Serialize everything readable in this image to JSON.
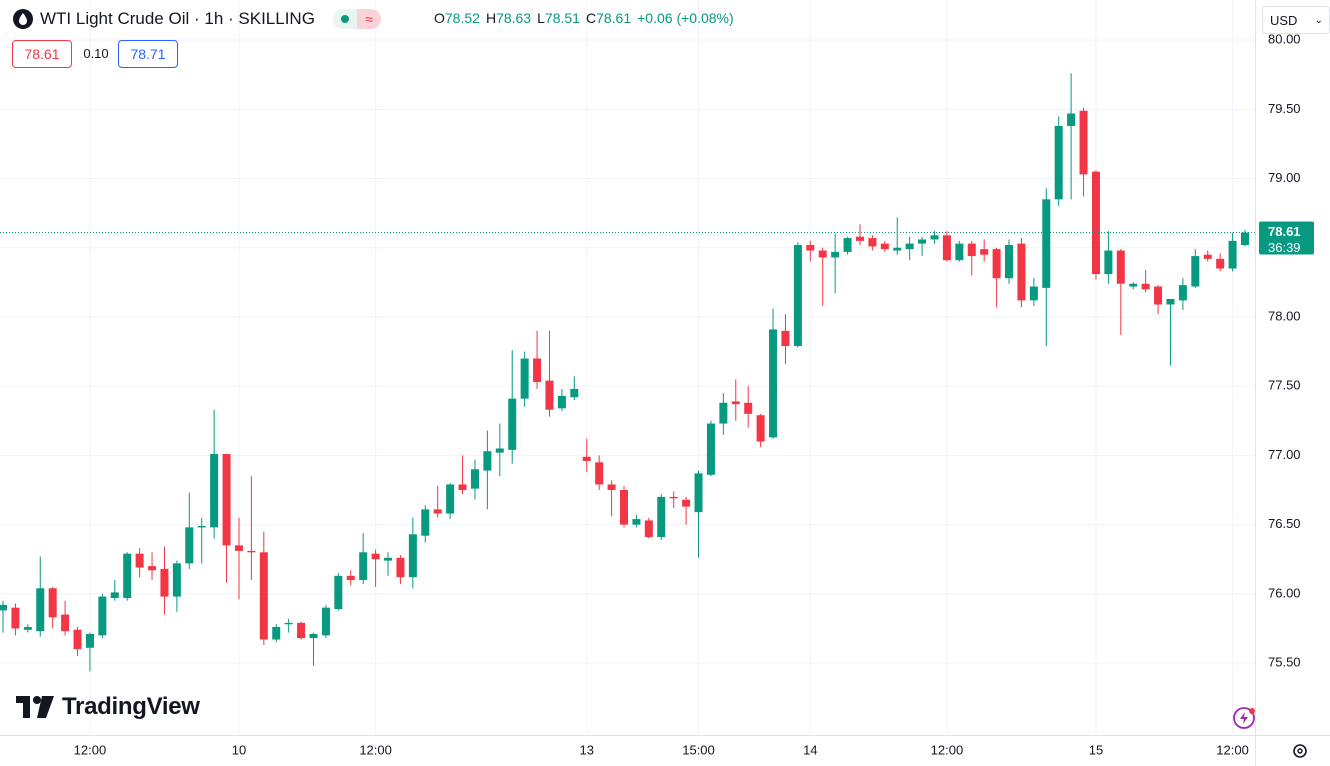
{
  "chart_data": {
    "type": "candlestick",
    "title": "WTI Light Crude Oil · 1h · SKILLING",
    "ohlc_legend": {
      "labels": [
        "O",
        "H",
        "L",
        "C"
      ],
      "values": [
        78.52,
        78.63,
        78.51,
        78.61
      ],
      "change": "+0.06 (+0.08%)"
    },
    "up_color": "#089981",
    "down_color": "#f23645",
    "categories": [
      null,
      null,
      null,
      null,
      null,
      null,
      null,
      "12:00",
      null,
      null,
      null,
      null,
      null,
      null,
      null,
      null,
      null,
      null,
      null,
      "10",
      null,
      null,
      null,
      null,
      null,
      null,
      null,
      null,
      null,
      null,
      "12:00",
      null,
      null,
      null,
      null,
      null,
      null,
      null,
      null,
      null,
      null,
      null,
      null,
      null,
      null,
      null,
      null,
      "13",
      null,
      null,
      null,
      null,
      null,
      null,
      null,
      null,
      "15:00",
      null,
      null,
      null,
      null,
      null,
      null,
      null,
      null,
      "14",
      null,
      null,
      null,
      null,
      null,
      null,
      null,
      null,
      null,
      null,
      "12:00",
      null,
      null,
      null,
      null,
      null,
      null,
      null,
      null,
      null,
      null,
      null,
      "15",
      null,
      null,
      null,
      null,
      null,
      null,
      null,
      null,
      null,
      null,
      "12:00",
      null
    ],
    "open": [
      75.88,
      75.9,
      75.74,
      75.73,
      76.04,
      75.85,
      75.74,
      75.61,
      75.7,
      75.97,
      75.97,
      76.29,
      76.2,
      76.18,
      75.98,
      76.22,
      76.48,
      76.48,
      77.01,
      76.35,
      76.31,
      76.3,
      75.67,
      75.78,
      75.79,
      75.68,
      75.7,
      75.89,
      76.13,
      76.1,
      76.29,
      76.24,
      76.26,
      76.12,
      76.42,
      76.61,
      76.58,
      76.79,
      76.76,
      76.89,
      77.02,
      77.04,
      77.41,
      77.7,
      77.54,
      77.34,
      77.42,
      76.99,
      76.95,
      76.79,
      76.75,
      76.5,
      76.53,
      76.41,
      76.7,
      76.68,
      76.59,
      76.86,
      77.23,
      77.39,
      77.38,
      77.29,
      77.13,
      77.9,
      77.79,
      78.52,
      78.48,
      78.43,
      78.47,
      78.58,
      78.57,
      78.53,
      78.48,
      78.49,
      78.53,
      78.56,
      78.59,
      78.41,
      78.53,
      78.49,
      78.49,
      78.28,
      78.53,
      78.12,
      78.21,
      78.85,
      79.38,
      79.49,
      79.05,
      78.31,
      78.48,
      78.22,
      78.24,
      78.22,
      78.09,
      78.12,
      78.22,
      78.45,
      78.42,
      78.35,
      78.52
    ],
    "high": [
      75.95,
      75.93,
      75.78,
      76.27,
      76.05,
      75.95,
      75.76,
      75.72,
      76.0,
      76.1,
      76.3,
      76.33,
      76.3,
      76.34,
      76.24,
      76.73,
      76.55,
      77.33,
      77.01,
      76.55,
      76.85,
      76.45,
      75.78,
      75.82,
      75.8,
      75.72,
      75.92,
      76.15,
      76.17,
      76.44,
      76.32,
      76.3,
      76.28,
      76.55,
      76.64,
      76.78,
      76.8,
      77.0,
      76.97,
      77.18,
      77.23,
      77.76,
      77.75,
      77.9,
      77.9,
      77.48,
      77.57,
      77.12,
      77.0,
      76.82,
      76.78,
      76.57,
      76.55,
      76.72,
      76.74,
      76.7,
      76.89,
      77.25,
      77.45,
      77.55,
      77.5,
      77.3,
      78.06,
      78.02,
      78.54,
      78.55,
      78.5,
      78.6,
      78.58,
      78.67,
      78.59,
      78.55,
      78.72,
      78.58,
      78.58,
      78.62,
      78.62,
      78.55,
      78.55,
      78.56,
      78.5,
      78.56,
      78.57,
      78.28,
      78.93,
      79.45,
      79.76,
      79.51,
      79.06,
      78.62,
      78.49,
      78.25,
      78.34,
      78.23,
      78.13,
      78.28,
      78.49,
      78.48,
      78.46,
      78.61,
      78.63
    ],
    "low": [
      75.72,
      75.7,
      75.72,
      75.69,
      75.75,
      75.7,
      75.55,
      75.44,
      75.68,
      75.95,
      75.95,
      76.12,
      76.1,
      75.85,
      75.87,
      76.18,
      76.22,
      76.4,
      76.08,
      75.96,
      76.1,
      75.63,
      75.65,
      75.72,
      75.67,
      75.48,
      75.68,
      75.88,
      76.06,
      76.07,
      76.05,
      76.13,
      76.07,
      76.04,
      76.37,
      76.55,
      76.54,
      76.72,
      76.68,
      76.61,
      76.85,
      76.94,
      77.35,
      77.48,
      77.28,
      77.32,
      77.4,
      76.88,
      76.75,
      76.56,
      76.48,
      76.48,
      76.4,
      76.39,
      76.62,
      76.5,
      76.26,
      76.85,
      77.15,
      77.25,
      77.2,
      77.06,
      77.12,
      77.66,
      77.78,
      78.4,
      78.08,
      78.17,
      78.45,
      78.52,
      78.48,
      78.47,
      78.45,
      78.41,
      78.44,
      78.53,
      78.4,
      78.4,
      78.3,
      78.4,
      78.07,
      78.24,
      78.07,
      78.08,
      77.79,
      78.8,
      78.85,
      78.87,
      78.27,
      78.24,
      77.87,
      78.2,
      78.18,
      78.02,
      77.65,
      78.05,
      78.21,
      78.4,
      78.33,
      78.33,
      78.51
    ],
    "close": [
      75.92,
      75.75,
      75.76,
      76.04,
      75.83,
      75.73,
      75.6,
      75.71,
      75.98,
      76.01,
      76.29,
      76.19,
      76.17,
      75.98,
      76.22,
      76.48,
      76.49,
      77.01,
      76.35,
      76.31,
      76.3,
      75.67,
      75.76,
      75.79,
      75.68,
      75.71,
      75.9,
      76.13,
      76.1,
      76.3,
      76.25,
      76.26,
      76.12,
      76.43,
      76.61,
      76.58,
      76.79,
      76.75,
      76.9,
      77.03,
      77.05,
      77.41,
      77.7,
      77.53,
      77.33,
      77.43,
      77.48,
      76.96,
      76.79,
      76.75,
      76.5,
      76.54,
      76.41,
      76.7,
      76.69,
      76.63,
      76.87,
      77.23,
      77.38,
      77.37,
      77.3,
      77.1,
      77.91,
      77.79,
      78.52,
      78.48,
      78.43,
      78.47,
      78.57,
      78.55,
      78.51,
      78.49,
      78.5,
      78.53,
      78.56,
      78.59,
      78.41,
      78.53,
      78.44,
      78.45,
      78.28,
      78.52,
      78.12,
      78.22,
      78.85,
      79.38,
      79.47,
      79.03,
      78.31,
      78.48,
      78.24,
      78.24,
      78.2,
      78.09,
      78.13,
      78.23,
      78.44,
      78.42,
      78.35,
      78.55,
      78.61
    ],
    "ylim": [
      74.98,
      80.29
    ],
    "yticks": [
      {
        "value": 75.5,
        "label": "75.50"
      },
      {
        "value": 76,
        "label": "76.00"
      },
      {
        "value": 76.5,
        "label": "76.50"
      },
      {
        "value": 77,
        "label": "77.00"
      },
      {
        "value": 77.5,
        "label": "77.50"
      },
      {
        "value": 78,
        "label": "78.00"
      },
      {
        "value": 78.5,
        "label": "78.50"
      },
      {
        "value": 79,
        "label": "79.00"
      },
      {
        "value": 79.5,
        "label": "79.50"
      },
      {
        "value": 80,
        "label": "80.00"
      }
    ],
    "grid": true,
    "last_price": 78.61,
    "countdown": "36:39"
  },
  "ui": {
    "bid": "78.61",
    "spread": "0.10",
    "ask": "78.71",
    "currency": "USD",
    "logo": "TradingView"
  }
}
